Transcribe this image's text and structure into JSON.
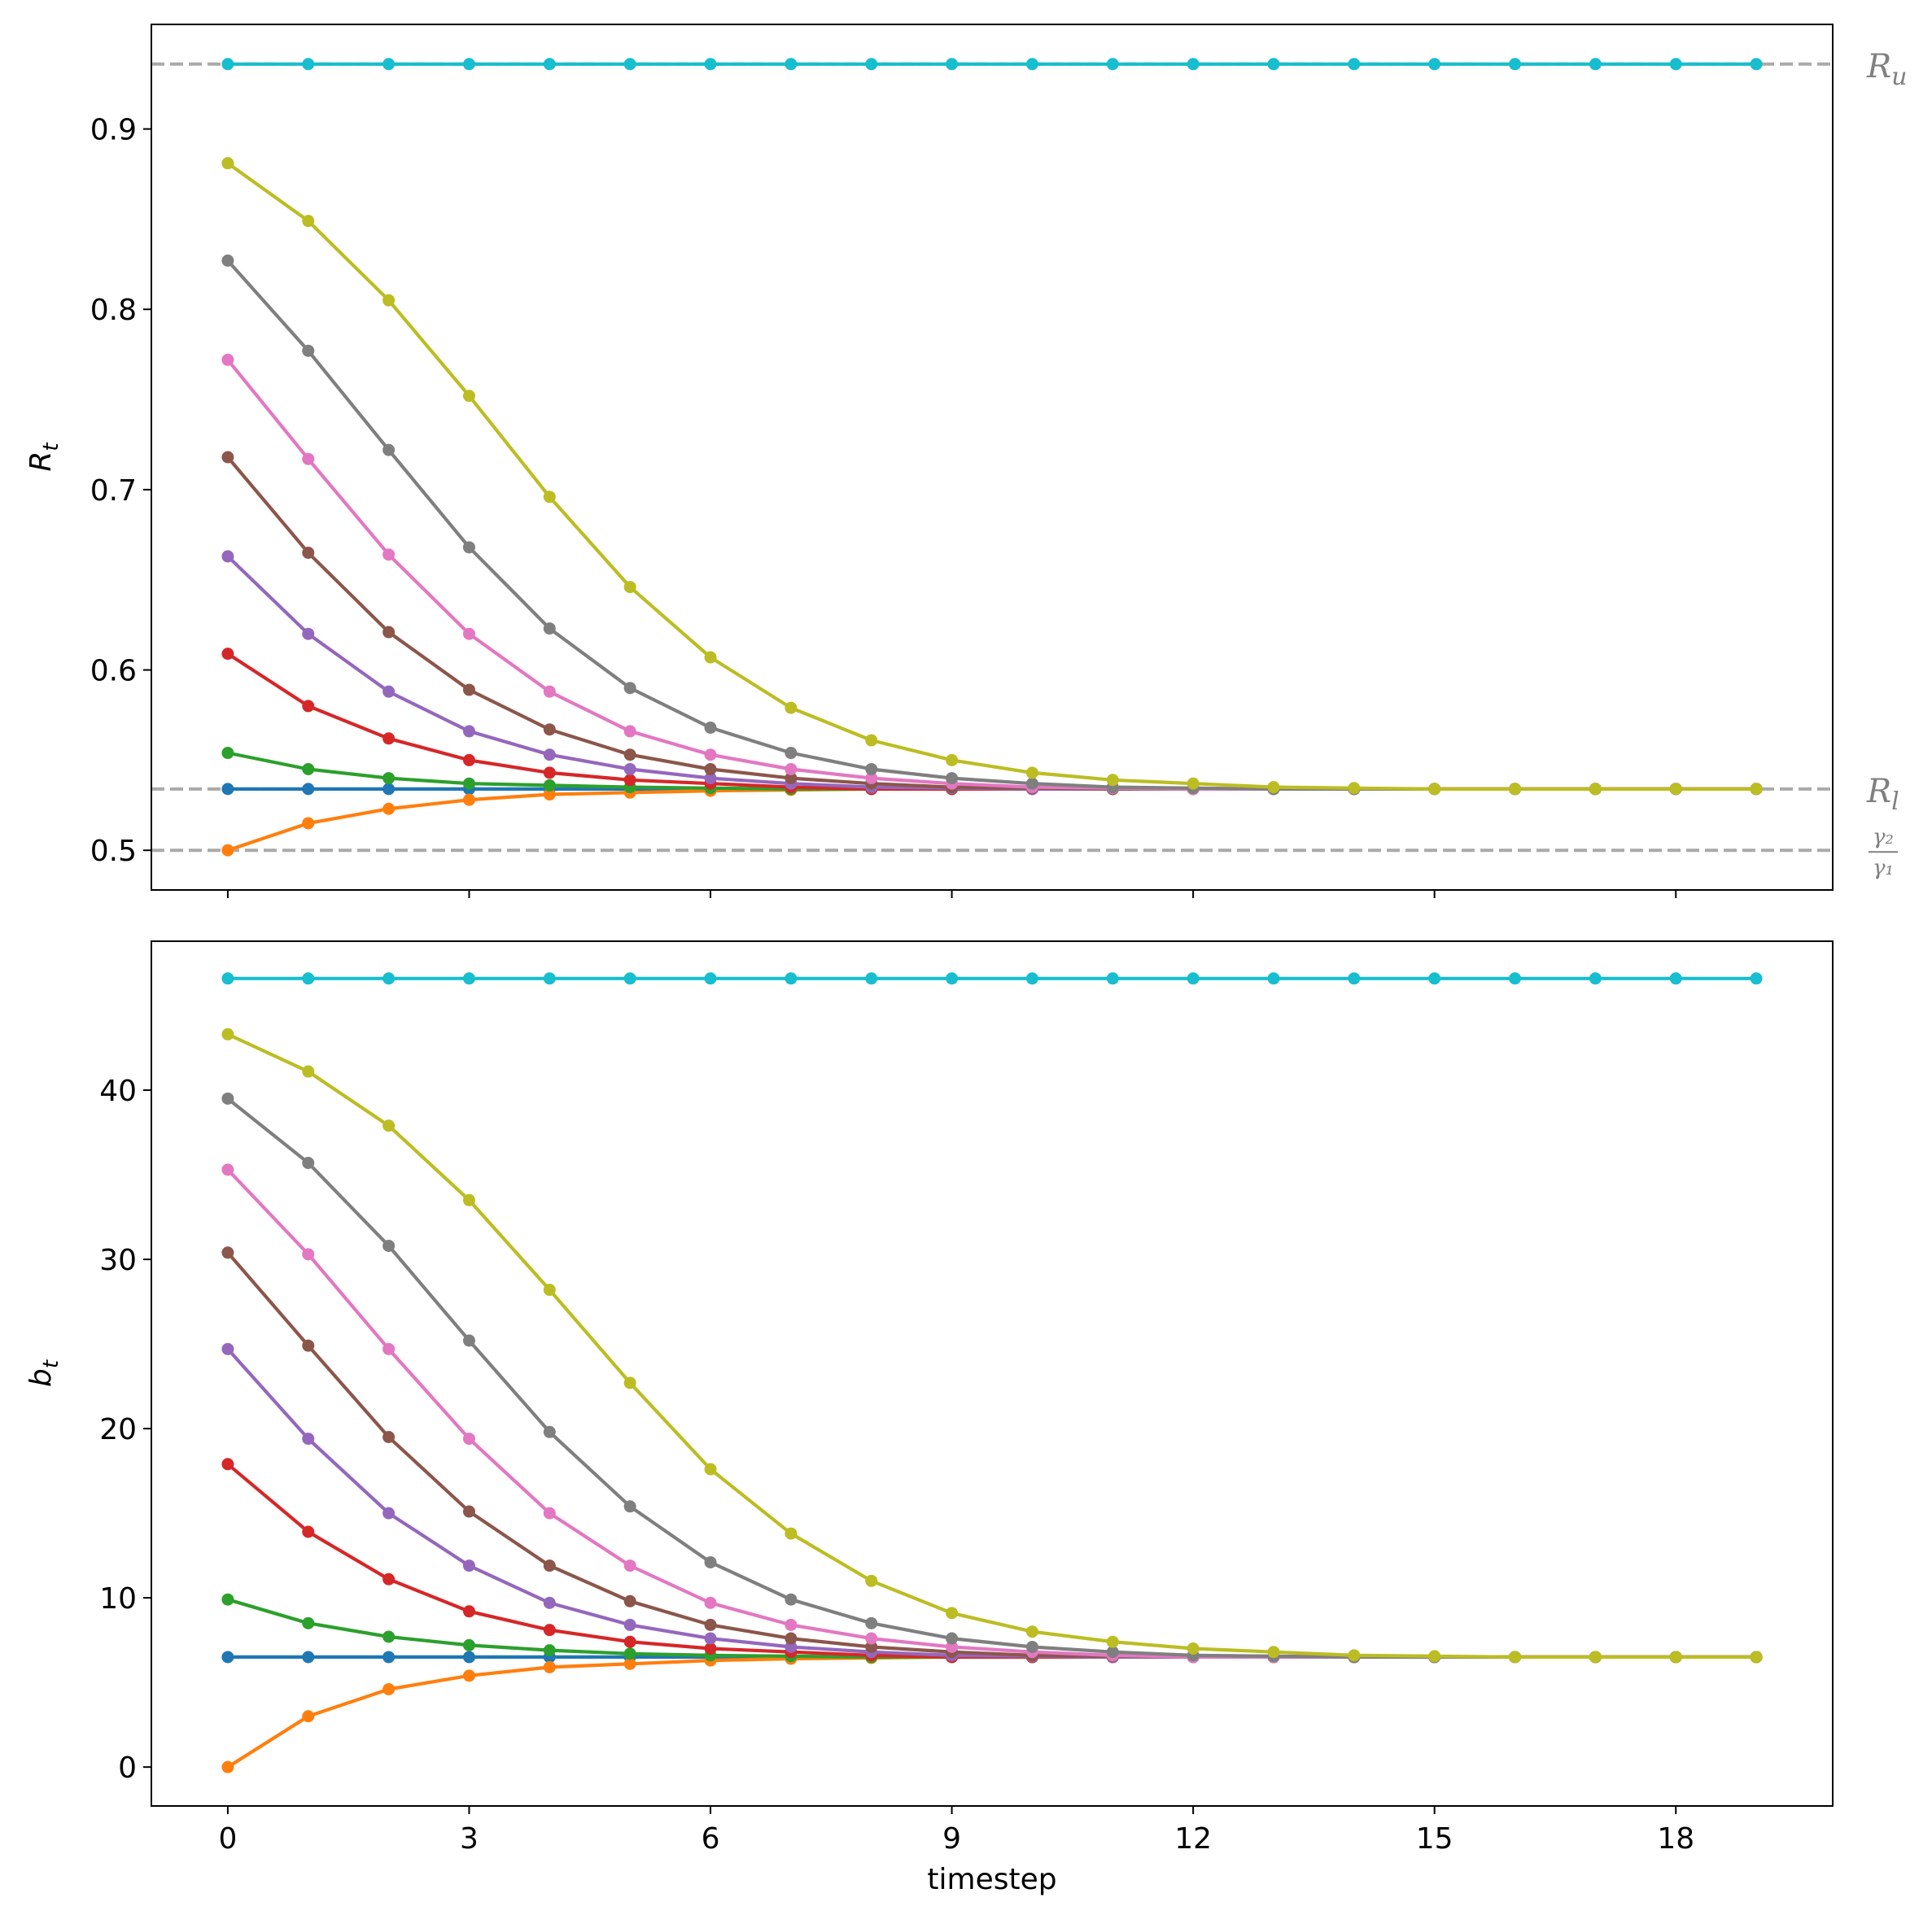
{
  "chart_data": [
    {
      "type": "line",
      "panel": "top",
      "xlabel": "",
      "ylabel": "R_t",
      "ylabel_display": "R",
      "ylabel_sub": "t",
      "ylim": [
        0.478,
        0.958
      ],
      "xlim": [
        -0.95,
        19.95
      ],
      "yticks": [
        0.5,
        0.6,
        0.7,
        0.8,
        0.9
      ],
      "ytick_labels": [
        "0.5",
        "0.6",
        "0.7",
        "0.8",
        "0.9"
      ],
      "x": [
        0,
        1,
        2,
        3,
        4,
        5,
        6,
        7,
        8,
        9,
        10,
        11,
        12,
        13,
        14,
        15,
        16,
        17,
        18,
        19
      ],
      "reference_lines": [
        {
          "name": "R_u",
          "label": "R",
          "sub": "u",
          "value": 0.936,
          "color": "#aaaaaa"
        },
        {
          "name": "R_l",
          "label": "R",
          "sub": "l",
          "value": 0.534,
          "color": "#aaaaaa"
        },
        {
          "name": "gamma2/gamma1",
          "label_num": "γ₂",
          "label_den": "γ₁",
          "value": 0.5,
          "color": "#aaaaaa"
        }
      ],
      "series": [
        {
          "name": "s0",
          "color": "#1f77b4",
          "values": [
            0.534,
            0.534,
            0.534,
            0.534,
            0.534,
            0.534,
            0.534,
            0.534,
            0.534,
            0.534,
            0.534,
            0.534,
            0.534,
            0.534,
            0.534,
            0.534,
            0.534,
            0.534,
            0.534,
            0.534
          ]
        },
        {
          "name": "s1",
          "color": "#ff7f0e",
          "values": [
            0.5,
            0.515,
            0.523,
            0.528,
            0.531,
            0.532,
            0.533,
            0.5335,
            0.534,
            0.534,
            0.534,
            0.534,
            0.534,
            0.534,
            0.534,
            0.534,
            0.534,
            0.534,
            0.534,
            0.534
          ]
        },
        {
          "name": "s2",
          "color": "#2ca02c",
          "values": [
            0.554,
            0.545,
            0.54,
            0.537,
            0.536,
            0.535,
            0.5345,
            0.534,
            0.534,
            0.534,
            0.534,
            0.534,
            0.534,
            0.534,
            0.534,
            0.534,
            0.534,
            0.534,
            0.534,
            0.534
          ]
        },
        {
          "name": "s3",
          "color": "#d62728",
          "values": [
            0.609,
            0.58,
            0.562,
            0.55,
            0.543,
            0.539,
            0.537,
            0.535,
            0.534,
            0.534,
            0.534,
            0.534,
            0.534,
            0.534,
            0.534,
            0.534,
            0.534,
            0.534,
            0.534,
            0.534
          ]
        },
        {
          "name": "s4",
          "color": "#9467bd",
          "values": [
            0.663,
            0.62,
            0.588,
            0.566,
            0.553,
            0.545,
            0.54,
            0.537,
            0.535,
            0.5345,
            0.534,
            0.534,
            0.534,
            0.534,
            0.534,
            0.534,
            0.534,
            0.534,
            0.534,
            0.534
          ]
        },
        {
          "name": "s5",
          "color": "#8c564b",
          "values": [
            0.718,
            0.665,
            0.621,
            0.589,
            0.567,
            0.553,
            0.545,
            0.54,
            0.537,
            0.535,
            0.5345,
            0.534,
            0.534,
            0.534,
            0.534,
            0.534,
            0.534,
            0.534,
            0.534,
            0.534
          ]
        },
        {
          "name": "s6",
          "color": "#e377c2",
          "values": [
            0.772,
            0.717,
            0.664,
            0.62,
            0.588,
            0.566,
            0.553,
            0.545,
            0.54,
            0.537,
            0.535,
            0.5345,
            0.534,
            0.534,
            0.534,
            0.534,
            0.534,
            0.534,
            0.534,
            0.534
          ]
        },
        {
          "name": "s7",
          "color": "#7f7f7f",
          "values": [
            0.827,
            0.777,
            0.722,
            0.668,
            0.623,
            0.59,
            0.568,
            0.554,
            0.545,
            0.54,
            0.537,
            0.535,
            0.5345,
            0.534,
            0.534,
            0.534,
            0.534,
            0.534,
            0.534,
            0.534
          ]
        },
        {
          "name": "s8",
          "color": "#bcbd22",
          "values": [
            0.881,
            0.849,
            0.805,
            0.752,
            0.696,
            0.646,
            0.607,
            0.579,
            0.561,
            0.55,
            0.543,
            0.539,
            0.537,
            0.535,
            0.5345,
            0.534,
            0.534,
            0.534,
            0.534,
            0.534
          ]
        },
        {
          "name": "s9",
          "color": "#17becf",
          "values": [
            0.936,
            0.936,
            0.936,
            0.936,
            0.936,
            0.936,
            0.936,
            0.936,
            0.936,
            0.936,
            0.936,
            0.936,
            0.936,
            0.936,
            0.936,
            0.936,
            0.936,
            0.936,
            0.936,
            0.936
          ]
        }
      ]
    },
    {
      "type": "line",
      "panel": "bottom",
      "xlabel": "timestep",
      "ylabel": "b_t",
      "ylabel_display": "b",
      "ylabel_sub": "t",
      "ylim": [
        -2.3,
        48.8
      ],
      "xlim": [
        -0.95,
        19.95
      ],
      "yticks": [
        0,
        10,
        20,
        30,
        40
      ],
      "ytick_labels": [
        "0",
        "10",
        "20",
        "30",
        "40"
      ],
      "xticks": [
        0,
        3,
        6,
        9,
        12,
        15,
        18
      ],
      "xtick_labels": [
        "0",
        "3",
        "6",
        "9",
        "12",
        "15",
        "18"
      ],
      "x": [
        0,
        1,
        2,
        3,
        4,
        5,
        6,
        7,
        8,
        9,
        10,
        11,
        12,
        13,
        14,
        15,
        16,
        17,
        18,
        19
      ],
      "series": [
        {
          "name": "s0",
          "color": "#1f77b4",
          "values": [
            6.5,
            6.5,
            6.5,
            6.5,
            6.5,
            6.5,
            6.5,
            6.5,
            6.5,
            6.5,
            6.5,
            6.5,
            6.5,
            6.5,
            6.5,
            6.5,
            6.5,
            6.5,
            6.5,
            6.5
          ]
        },
        {
          "name": "s1",
          "color": "#ff7f0e",
          "values": [
            0.0,
            3.0,
            4.6,
            5.4,
            5.9,
            6.1,
            6.3,
            6.4,
            6.45,
            6.5,
            6.5,
            6.5,
            6.5,
            6.5,
            6.5,
            6.5,
            6.5,
            6.5,
            6.5,
            6.5
          ]
        },
        {
          "name": "s2",
          "color": "#2ca02c",
          "values": [
            9.9,
            8.5,
            7.7,
            7.2,
            6.9,
            6.7,
            6.6,
            6.55,
            6.5,
            6.5,
            6.5,
            6.5,
            6.5,
            6.5,
            6.5,
            6.5,
            6.5,
            6.5,
            6.5,
            6.5
          ]
        },
        {
          "name": "s3",
          "color": "#d62728",
          "values": [
            17.9,
            13.9,
            11.1,
            9.2,
            8.1,
            7.4,
            7.0,
            6.8,
            6.6,
            6.5,
            6.5,
            6.5,
            6.5,
            6.5,
            6.5,
            6.5,
            6.5,
            6.5,
            6.5,
            6.5
          ]
        },
        {
          "name": "s4",
          "color": "#9467bd",
          "values": [
            24.7,
            19.4,
            15.0,
            11.9,
            9.7,
            8.4,
            7.6,
            7.1,
            6.8,
            6.6,
            6.55,
            6.5,
            6.5,
            6.5,
            6.5,
            6.5,
            6.5,
            6.5,
            6.5,
            6.5
          ]
        },
        {
          "name": "s5",
          "color": "#8c564b",
          "values": [
            30.4,
            24.9,
            19.5,
            15.1,
            11.9,
            9.8,
            8.4,
            7.6,
            7.1,
            6.8,
            6.6,
            6.55,
            6.5,
            6.5,
            6.5,
            6.5,
            6.5,
            6.5,
            6.5,
            6.5
          ]
        },
        {
          "name": "s6",
          "color": "#e377c2",
          "values": [
            35.3,
            30.3,
            24.7,
            19.4,
            15.0,
            11.9,
            9.7,
            8.4,
            7.6,
            7.1,
            6.8,
            6.6,
            6.5,
            6.5,
            6.5,
            6.5,
            6.5,
            6.5,
            6.5,
            6.5
          ]
        },
        {
          "name": "s7",
          "color": "#7f7f7f",
          "values": [
            39.5,
            35.7,
            30.8,
            25.2,
            19.8,
            15.4,
            12.1,
            9.9,
            8.5,
            7.6,
            7.1,
            6.8,
            6.6,
            6.55,
            6.5,
            6.5,
            6.5,
            6.5,
            6.5,
            6.5
          ]
        },
        {
          "name": "s8",
          "color": "#bcbd22",
          "values": [
            43.3,
            41.1,
            37.9,
            33.5,
            28.2,
            22.7,
            17.6,
            13.8,
            11.0,
            9.1,
            8.0,
            7.4,
            7.0,
            6.8,
            6.6,
            6.55,
            6.5,
            6.5,
            6.5,
            6.5
          ]
        },
        {
          "name": "s9",
          "color": "#17becf",
          "values": [
            46.6,
            46.6,
            46.6,
            46.6,
            46.6,
            46.6,
            46.6,
            46.6,
            46.6,
            46.6,
            46.6,
            46.6,
            46.6,
            46.6,
            46.6,
            46.6,
            46.6,
            46.6,
            46.6,
            46.6
          ]
        }
      ]
    }
  ]
}
